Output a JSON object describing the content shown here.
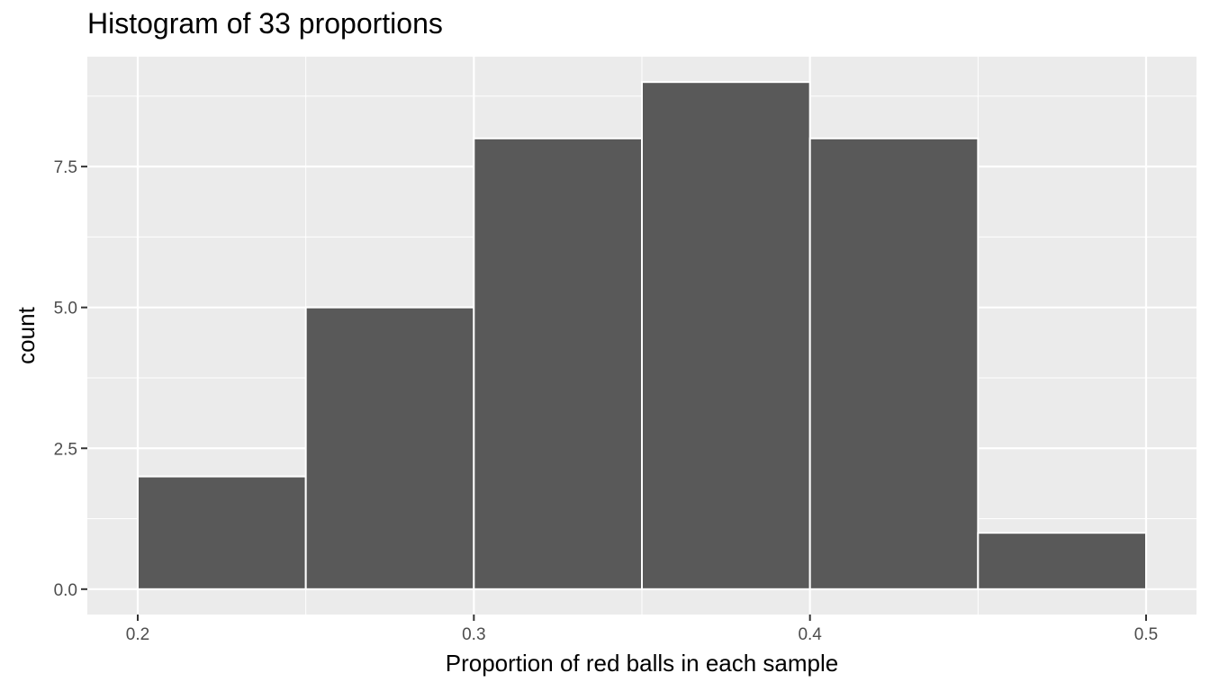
{
  "chart_data": {
    "type": "bar",
    "title": "Histogram of 33 proportions",
    "xlabel": "Proportion of red balls in each sample",
    "ylabel": "count",
    "bins": [
      {
        "x_start": 0.2,
        "x_end": 0.25,
        "count": 2
      },
      {
        "x_start": 0.25,
        "x_end": 0.3,
        "count": 5
      },
      {
        "x_start": 0.3,
        "x_end": 0.35,
        "count": 8
      },
      {
        "x_start": 0.35,
        "x_end": 0.4,
        "count": 9
      },
      {
        "x_start": 0.4,
        "x_end": 0.45,
        "count": 8
      },
      {
        "x_start": 0.45,
        "x_end": 0.5,
        "count": 1
      }
    ],
    "xlim": [
      0.185,
      0.515
    ],
    "ylim": [
      -0.45,
      9.45
    ],
    "x_ticks": [
      0.2,
      0.3,
      0.4,
      0.5
    ],
    "x_tick_labels": [
      "0.2",
      "0.3",
      "0.4",
      "0.5"
    ],
    "y_ticks": [
      0,
      2.5,
      5,
      7.5
    ],
    "y_tick_labels": [
      "0.0",
      "2.5",
      "5.0",
      "7.5"
    ],
    "grid": true,
    "colors": {
      "panel_background": "#ebebeb",
      "grid": "#ffffff",
      "bar_fill": "#595959",
      "bar_outline": "#ffffff"
    }
  }
}
